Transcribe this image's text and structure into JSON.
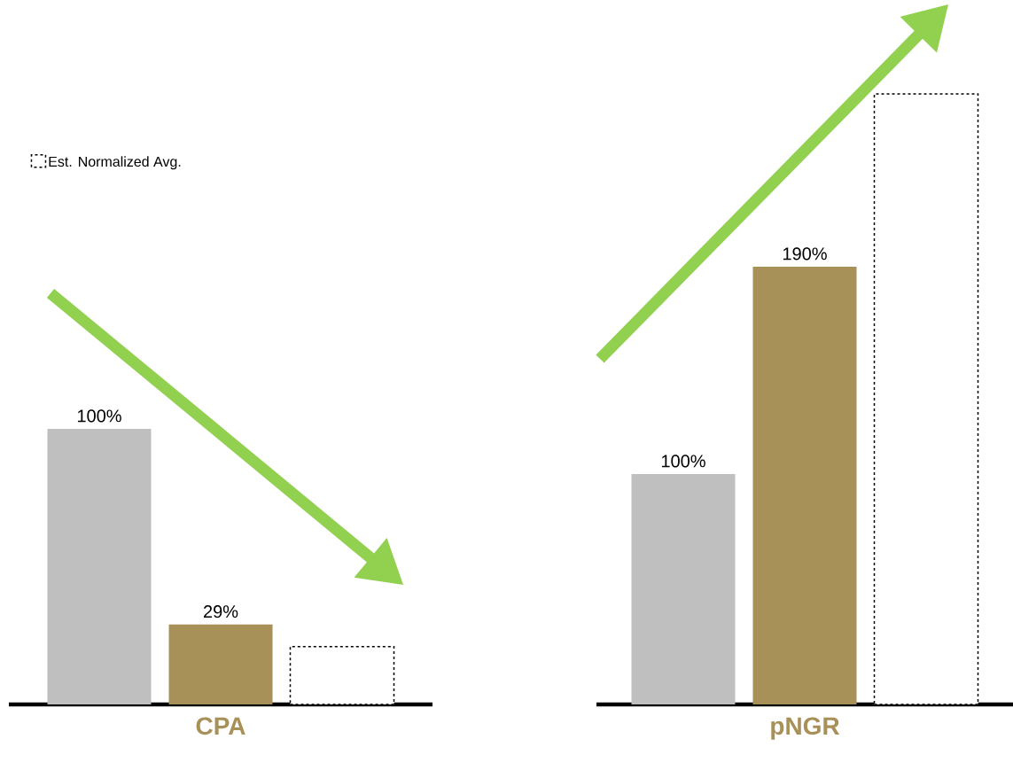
{
  "chart_data": [
    {
      "type": "bar",
      "xlabel": "CPA",
      "categories": [
        null
      ],
      "legend": "top left",
      "series": [
        {
          "color": "#bfbfbf",
          "values": [
            100
          ],
          "value_labels": [
            "100%"
          ]
        },
        {
          "color": "#a89158",
          "values": [
            29
          ],
          "value_labels": [
            "29%"
          ]
        },
        {
          "name": "Est. Normalized Avg.",
          "color": "#000000",
          "line_style": "dashed",
          "values": [
            21
          ]
        }
      ]
    },
    {
      "type": "bar",
      "xlabel": "pNGR",
      "categories": [
        null
      ],
      "series": [
        {
          "color": "#bfbfbf",
          "values": [
            100
          ],
          "value_labels": [
            "100%"
          ]
        },
        {
          "color": "#a89158",
          "values": [
            190
          ],
          "value_labels": [
            "190%"
          ]
        },
        {
          "color": "#000000",
          "line_style": "dashed",
          "values": [
            265
          ]
        }
      ]
    }
  ]
}
